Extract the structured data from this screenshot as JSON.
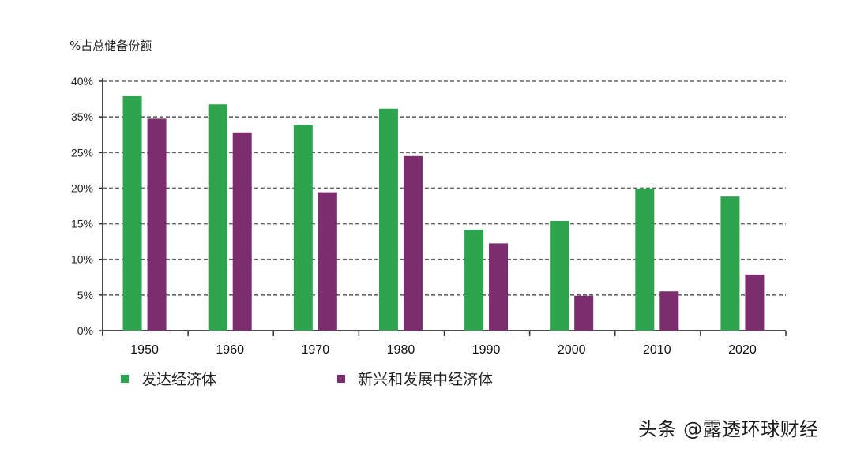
{
  "chart_data": {
    "type": "bar",
    "title": "",
    "ylabel": "%占总储备份额",
    "xlabel": "",
    "categories": [
      "1950",
      "1960",
      "1970",
      "1980",
      "1990",
      "2000",
      "2010",
      "2020"
    ],
    "series": [
      {
        "name": "发达经济体",
        "color": "#2ea44f",
        "values": [
          37.6,
          36.3,
          33.0,
          35.6,
          16.2,
          17.6,
          22.8,
          21.5
        ]
      },
      {
        "name": "新兴和发展中经济体",
        "color": "#7b2d6e",
        "values": [
          34.0,
          31.8,
          22.2,
          28.0,
          14.0,
          5.6,
          6.3,
          9.0
        ]
      }
    ],
    "yticks": [
      "0%",
      "5%",
      "10%",
      "15%",
      "20%",
      "25%",
      "35%",
      "40%"
    ],
    "ylim": [
      0,
      40
    ],
    "grid": true,
    "grid_style": "dashed",
    "legend_position": "bottom"
  },
  "legend": {
    "items": [
      {
        "label": "发达经济体",
        "color": "#2ea44f"
      },
      {
        "label": "新兴和发展中经济体",
        "color": "#7b2d6e"
      }
    ]
  },
  "watermark": "头条 @露透环球财经"
}
